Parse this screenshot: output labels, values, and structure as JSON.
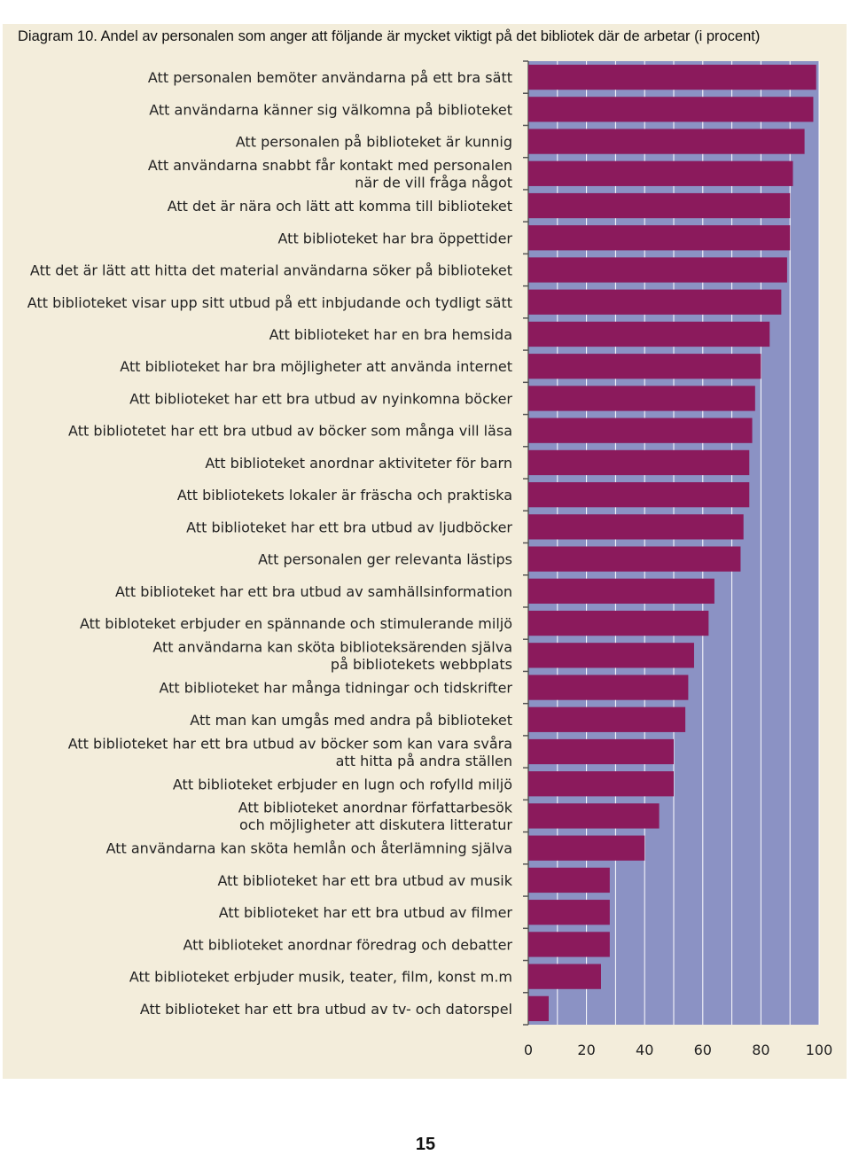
{
  "page": {
    "number": "15"
  },
  "colors": {
    "background": "#f3eddb",
    "plot_area": "#8b92c4",
    "bar": "#8b1a5c",
    "grid": "#ffffff",
    "axis": "#555555"
  },
  "chart_data": {
    "type": "bar",
    "orientation": "horizontal",
    "title": "Diagram 10. Andel av personalen som anger att följande är mycket viktigt på det bibliotek där de arbetar (i procent)",
    "xlabel": "",
    "ylabel": "",
    "xlim": [
      0,
      100
    ],
    "x_ticks": [
      0,
      20,
      40,
      60,
      80,
      100
    ],
    "grid": true,
    "categories": [
      "Att personalen bemöter användarna på ett bra sätt",
      "Att användarna känner sig välkomna på biblioteket",
      "Att personalen på biblioteket är kunnig",
      "Att användarna snabbt får kontakt med personalen\nnär de vill fråga något",
      "Att det är nära och lätt att komma till biblioteket",
      "Att biblioteket har bra öppettider",
      "Att det är lätt att hitta det material användarna söker på biblioteket",
      "Att biblioteket visar upp sitt utbud på ett inbjudande och tydligt sätt",
      "Att biblioteket har en bra hemsida",
      "Att biblioteket har bra möjligheter att använda internet",
      "Att biblioteket har ett bra utbud av nyinkomna böcker",
      "Att bibliotetet har ett bra utbud av böcker som många vill läsa",
      "Att biblioteket anordnar aktiviteter för barn",
      "Att bibliotekets lokaler är fräscha och praktiska",
      "Att biblioteket har ett bra utbud av ljudböcker",
      "Att personalen ger relevanta lästips",
      "Att biblioteket har ett bra utbud av samhällsinformation",
      "Att bibloteket erbjuder en spännande och stimulerande miljö",
      "Att användarna kan sköta biblioteksärenden själva\npå bibliotekets webbplats",
      "Att biblioteket har många tidningar och tidskrifter",
      "Att man kan umgås med andra på biblioteket",
      "Att biblioteket har ett bra utbud av böcker som kan vara svåra\natt hitta på andra ställen",
      "Att biblioteket erbjuder en lugn och rofylld miljö",
      "Att biblioteket anordnar författarbesök\noch möjligheter att diskutera litteratur",
      "Att användarna kan sköta hemlån och återlämning själva",
      "Att biblioteket har ett bra utbud av musik",
      "Att biblioteket har ett bra utbud av filmer",
      "Att biblioteket anordnar föredrag och debatter",
      "Att biblioteket erbjuder musik, teater, film, konst m.m",
      "Att biblioteket har ett bra utbud av tv- och datorspel"
    ],
    "values": [
      99,
      98,
      95,
      91,
      90,
      90,
      89,
      87,
      83,
      80,
      78,
      77,
      76,
      76,
      74,
      73,
      64,
      62,
      57,
      55,
      54,
      50,
      50,
      45,
      40,
      28,
      28,
      28,
      25,
      7
    ]
  }
}
